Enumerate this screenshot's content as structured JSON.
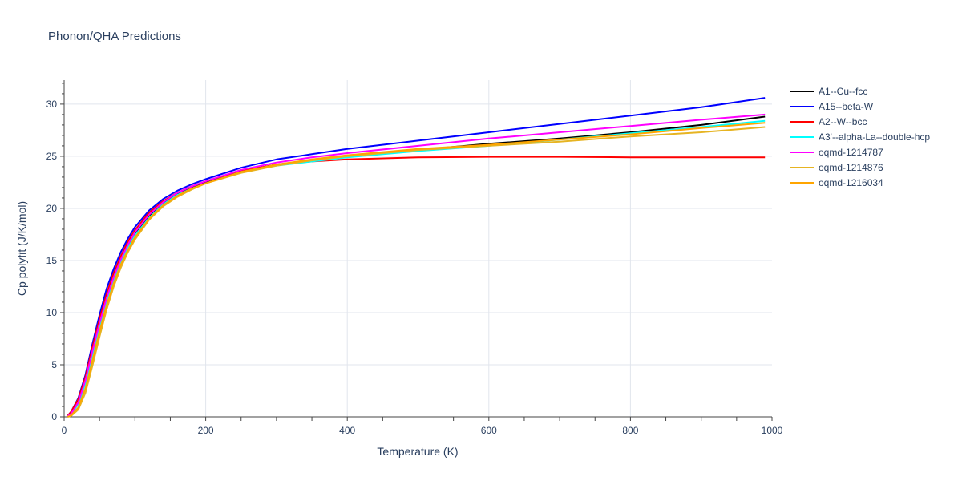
{
  "chart_data": {
    "type": "line",
    "title": "Phonon/QHA Predictions",
    "xlabel": "Temperature (K)",
    "ylabel": "Cp polyfit (J/K/mol)",
    "xlim": [
      0,
      1000
    ],
    "ylim": [
      0,
      32.3
    ],
    "x_ticks": [
      0,
      200,
      400,
      600,
      800,
      1000
    ],
    "y_ticks": [
      0,
      5,
      10,
      15,
      20,
      25,
      30
    ],
    "grid": true,
    "legend_position": "right",
    "series": [
      {
        "name": "A1--Cu--fcc",
        "color": "#000000",
        "points": [
          [
            5,
            0.05
          ],
          [
            10,
            0.3
          ],
          [
            20,
            1.3
          ],
          [
            30,
            3.4
          ],
          [
            40,
            6.2
          ],
          [
            50,
            8.9
          ],
          [
            60,
            11.3
          ],
          [
            70,
            13.3
          ],
          [
            80,
            15.0
          ],
          [
            90,
            16.4
          ],
          [
            100,
            17.6
          ],
          [
            120,
            19.3
          ],
          [
            140,
            20.5
          ],
          [
            160,
            21.4
          ],
          [
            180,
            22.0
          ],
          [
            200,
            22.5
          ],
          [
            250,
            23.6
          ],
          [
            300,
            24.2
          ],
          [
            350,
            24.6
          ],
          [
            400,
            25.0
          ],
          [
            500,
            25.6
          ],
          [
            600,
            26.2
          ],
          [
            700,
            26.7
          ],
          [
            800,
            27.3
          ],
          [
            900,
            28.0
          ],
          [
            990,
            28.8
          ]
        ]
      },
      {
        "name": "A15--beta-W",
        "color": "#0000ff",
        "points": [
          [
            5,
            0.1
          ],
          [
            10,
            0.5
          ],
          [
            20,
            1.8
          ],
          [
            30,
            4.0
          ],
          [
            40,
            7.0
          ],
          [
            50,
            9.8
          ],
          [
            60,
            12.3
          ],
          [
            70,
            14.2
          ],
          [
            80,
            15.8
          ],
          [
            90,
            17.1
          ],
          [
            100,
            18.2
          ],
          [
            120,
            19.8
          ],
          [
            140,
            20.9
          ],
          [
            160,
            21.7
          ],
          [
            180,
            22.3
          ],
          [
            200,
            22.8
          ],
          [
            250,
            23.9
          ],
          [
            300,
            24.7
          ],
          [
            350,
            25.2
          ],
          [
            400,
            25.7
          ],
          [
            500,
            26.5
          ],
          [
            600,
            27.3
          ],
          [
            700,
            28.1
          ],
          [
            800,
            28.9
          ],
          [
            900,
            29.7
          ],
          [
            990,
            30.6
          ]
        ]
      },
      {
        "name": "A2--W--bcc",
        "color": "#ff0000",
        "points": [
          [
            5,
            0.1
          ],
          [
            10,
            0.5
          ],
          [
            20,
            1.7
          ],
          [
            30,
            3.8
          ],
          [
            40,
            6.7
          ],
          [
            50,
            9.4
          ],
          [
            60,
            11.8
          ],
          [
            70,
            13.8
          ],
          [
            80,
            15.4
          ],
          [
            90,
            16.8
          ],
          [
            100,
            17.9
          ],
          [
            120,
            19.6
          ],
          [
            140,
            20.7
          ],
          [
            160,
            21.5
          ],
          [
            180,
            22.1
          ],
          [
            200,
            22.6
          ],
          [
            250,
            23.6
          ],
          [
            300,
            24.2
          ],
          [
            350,
            24.5
          ],
          [
            400,
            24.7
          ],
          [
            500,
            24.9
          ],
          [
            600,
            24.95
          ],
          [
            700,
            24.95
          ],
          [
            800,
            24.9
          ],
          [
            900,
            24.9
          ],
          [
            990,
            24.9
          ]
        ]
      },
      {
        "name": "A3'--alpha-La--double-hcp",
        "color": "#00ffff",
        "points": [
          [
            5,
            0.05
          ],
          [
            10,
            0.3
          ],
          [
            20,
            1.2
          ],
          [
            30,
            3.2
          ],
          [
            40,
            6.0
          ],
          [
            50,
            8.7
          ],
          [
            60,
            11.1
          ],
          [
            70,
            13.1
          ],
          [
            80,
            14.8
          ],
          [
            90,
            16.2
          ],
          [
            100,
            17.4
          ],
          [
            120,
            19.1
          ],
          [
            140,
            20.4
          ],
          [
            160,
            21.3
          ],
          [
            180,
            21.9
          ],
          [
            200,
            22.4
          ],
          [
            250,
            23.5
          ],
          [
            300,
            24.1
          ],
          [
            350,
            24.5
          ],
          [
            400,
            24.9
          ],
          [
            500,
            25.5
          ],
          [
            600,
            26.0
          ],
          [
            700,
            26.6
          ],
          [
            800,
            27.2
          ],
          [
            900,
            27.8
          ],
          [
            990,
            28.4
          ]
        ]
      },
      {
        "name": "oqmd-1214787",
        "color": "#ff00ff",
        "points": [
          [
            5,
            0.05
          ],
          [
            10,
            0.3
          ],
          [
            20,
            1.4
          ],
          [
            30,
            3.5
          ],
          [
            40,
            6.3
          ],
          [
            50,
            9.0
          ],
          [
            60,
            11.4
          ],
          [
            70,
            13.4
          ],
          [
            80,
            15.1
          ],
          [
            90,
            16.5
          ],
          [
            100,
            17.7
          ],
          [
            120,
            19.4
          ],
          [
            140,
            20.6
          ],
          [
            160,
            21.5
          ],
          [
            180,
            22.1
          ],
          [
            200,
            22.6
          ],
          [
            250,
            23.7
          ],
          [
            300,
            24.4
          ],
          [
            350,
            24.9
          ],
          [
            400,
            25.3
          ],
          [
            500,
            26.0
          ],
          [
            600,
            26.7
          ],
          [
            700,
            27.3
          ],
          [
            800,
            27.9
          ],
          [
            900,
            28.5
          ],
          [
            990,
            29.0
          ]
        ]
      },
      {
        "name": "oqmd-1214876",
        "color": "#e6b422",
        "points": [
          [
            5,
            0.0
          ],
          [
            10,
            0.1
          ],
          [
            20,
            0.7
          ],
          [
            30,
            2.3
          ],
          [
            40,
            4.9
          ],
          [
            50,
            7.7
          ],
          [
            60,
            10.3
          ],
          [
            70,
            12.5
          ],
          [
            80,
            14.3
          ],
          [
            90,
            15.8
          ],
          [
            100,
            17.0
          ],
          [
            120,
            18.9
          ],
          [
            140,
            20.2
          ],
          [
            160,
            21.1
          ],
          [
            180,
            21.8
          ],
          [
            200,
            22.4
          ],
          [
            250,
            23.4
          ],
          [
            300,
            24.1
          ],
          [
            350,
            24.6
          ],
          [
            400,
            25.0
          ],
          [
            500,
            25.6
          ],
          [
            600,
            26.0
          ],
          [
            700,
            26.4
          ],
          [
            800,
            26.9
          ],
          [
            900,
            27.3
          ],
          [
            990,
            27.8
          ]
        ]
      },
      {
        "name": "oqmd-1216034",
        "color": "#ffa500",
        "points": [
          [
            5,
            0.0
          ],
          [
            10,
            0.15
          ],
          [
            20,
            0.9
          ],
          [
            30,
            2.7
          ],
          [
            40,
            5.4
          ],
          [
            50,
            8.2
          ],
          [
            60,
            10.7
          ],
          [
            70,
            12.8
          ],
          [
            80,
            14.6
          ],
          [
            90,
            16.0
          ],
          [
            100,
            17.2
          ],
          [
            120,
            19.0
          ],
          [
            140,
            20.3
          ],
          [
            160,
            21.2
          ],
          [
            180,
            21.9
          ],
          [
            200,
            22.4
          ],
          [
            250,
            23.5
          ],
          [
            300,
            24.2
          ],
          [
            350,
            24.7
          ],
          [
            400,
            25.1
          ],
          [
            500,
            25.7
          ],
          [
            600,
            26.1
          ],
          [
            700,
            26.6
          ],
          [
            800,
            27.1
          ],
          [
            900,
            27.7
          ],
          [
            990,
            28.2
          ]
        ]
      }
    ]
  }
}
